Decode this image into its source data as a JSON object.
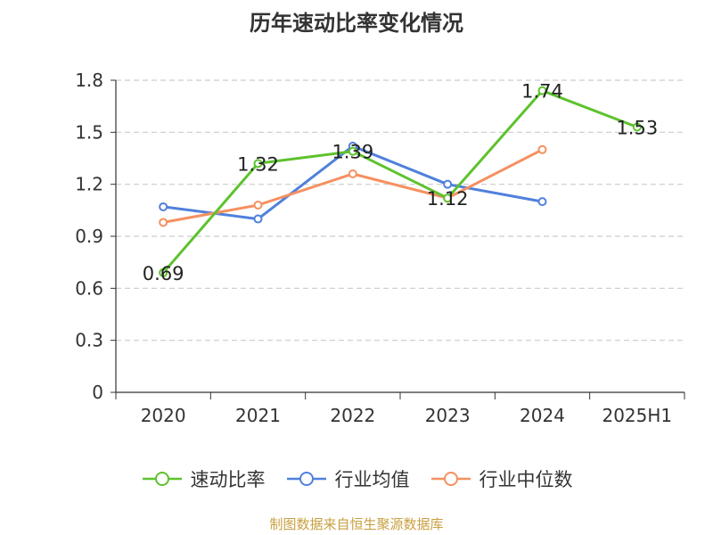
{
  "chart_data": {
    "type": "line",
    "title": "历年速动比率变化情况",
    "categories": [
      "2020",
      "2021",
      "2022",
      "2023",
      "2024",
      "2025H1"
    ],
    "ylim": [
      0,
      1.8
    ],
    "yticks": [
      "0",
      "0.3",
      "0.6",
      "0.9",
      "1.2",
      "1.5",
      "1.8"
    ],
    "grid": true,
    "legend_position": "bottom",
    "series": [
      {
        "name": "速动比率",
        "color": "#5ec22e",
        "values": [
          0.69,
          1.32,
          1.39,
          1.12,
          1.74,
          1.53
        ],
        "labels": [
          "0.69",
          "1.32",
          "1.39",
          "1.12",
          "1.74",
          "1.53"
        ]
      },
      {
        "name": "行业均值",
        "color": "#5080dc",
        "values": [
          1.07,
          1.0,
          1.42,
          1.2,
          1.1,
          null
        ]
      },
      {
        "name": "行业中位数",
        "color": "#f59060",
        "values": [
          0.98,
          1.08,
          1.26,
          1.12,
          1.4,
          null
        ]
      }
    ]
  },
  "source_note": "制图数据来自恒生聚源数据库"
}
